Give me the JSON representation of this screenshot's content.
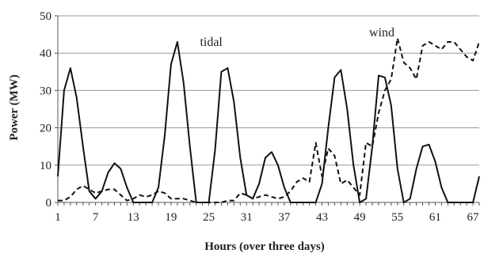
{
  "chart_data": {
    "type": "line",
    "xlabel": "Hours (over three days)",
    "ylabel": "Power (MW)",
    "ylim": [
      0,
      50
    ],
    "xlim": [
      1,
      68
    ],
    "yticks": [
      0,
      10,
      20,
      30,
      40,
      50
    ],
    "xticks": [
      1,
      7,
      13,
      19,
      25,
      31,
      37,
      43,
      49,
      55,
      61,
      67
    ],
    "grid": "horizontal",
    "annotations": [
      {
        "text": "tidal",
        "series": "tidal"
      },
      {
        "text": "wind",
        "series": "wind"
      }
    ],
    "series": [
      {
        "key": "tidal",
        "style": "solid",
        "color": "#111111",
        "x": [
          1,
          2,
          3,
          4,
          5,
          6,
          7,
          8,
          9,
          10,
          11,
          12,
          13,
          14,
          15,
          16,
          17,
          18,
          19,
          20,
          21,
          22,
          23,
          24,
          25,
          26,
          27,
          28,
          29,
          30,
          31,
          32,
          33,
          34,
          35,
          36,
          37,
          38,
          39,
          40,
          41,
          42,
          43,
          44,
          45,
          46,
          47,
          48,
          49,
          50,
          51,
          52,
          53,
          54,
          55,
          56,
          57,
          58,
          59,
          60,
          61,
          62,
          63,
          64,
          65,
          66,
          67,
          68
        ],
        "values": [
          7,
          30,
          36,
          28,
          15,
          3,
          1,
          3,
          8,
          10.5,
          9,
          4,
          0,
          0,
          0,
          0,
          4,
          18,
          37,
          43,
          32,
          15,
          0,
          0,
          0,
          14,
          35,
          36,
          27,
          12,
          2,
          1,
          5,
          12,
          13.5,
          10,
          4,
          0,
          0,
          0,
          0,
          0,
          5,
          20,
          33.5,
          35.5,
          25,
          10,
          0,
          1,
          15,
          34,
          33.5,
          26,
          9,
          0,
          1,
          9,
          15,
          15.5,
          11,
          4,
          0,
          0,
          0,
          0,
          0,
          7
        ]
      },
      {
        "key": "wind",
        "style": "dashed",
        "color": "#111111",
        "x": [
          1,
          2,
          3,
          4,
          5,
          6,
          7,
          8,
          9,
          10,
          11,
          12,
          13,
          14,
          15,
          16,
          17,
          18,
          19,
          20,
          21,
          22,
          23,
          24,
          25,
          26,
          27,
          28,
          29,
          30,
          31,
          32,
          33,
          34,
          35,
          36,
          37,
          38,
          39,
          40,
          41,
          42,
          43,
          44,
          45,
          46,
          47,
          48,
          49,
          50,
          51,
          52,
          53,
          54,
          55,
          56,
          57,
          58,
          59,
          60,
          61,
          62,
          63,
          64,
          65,
          66,
          67,
          68
        ],
        "values": [
          0.5,
          0.5,
          1.5,
          3.5,
          4.5,
          3.5,
          2.5,
          3,
          3.5,
          3.5,
          2,
          0.5,
          1,
          2,
          1.5,
          2,
          3,
          2.5,
          1,
          1,
          1,
          0.5,
          0,
          0,
          0,
          0,
          0,
          0.5,
          0.5,
          2.5,
          2,
          1,
          1.5,
          2,
          1.5,
          1,
          1.5,
          3,
          5.5,
          6.5,
          5.5,
          16,
          7,
          14.5,
          12.5,
          5,
          6,
          4,
          2,
          16,
          15,
          24,
          30,
          33,
          44,
          37.5,
          36,
          33,
          42,
          43,
          42,
          41,
          43,
          43,
          41,
          39,
          38,
          43
        ]
      }
    ]
  }
}
